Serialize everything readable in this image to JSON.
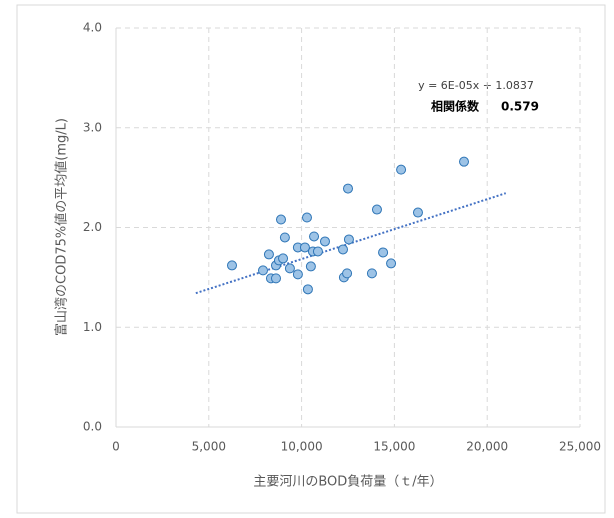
{
  "chart_data": {
    "type": "scatter",
    "x_label": "主要河川のBOD負荷量（ｔ/年）",
    "y_label": "富山湾のCOD75%値の平均値(mg/L)",
    "x": [
      6250,
      7920,
      8240,
      8350,
      8620,
      8620,
      8780,
      8890,
      9000,
      9100,
      9370,
      9800,
      9800,
      10180,
      10290,
      10340,
      10500,
      10670,
      10610,
      10880,
      11260,
      12230,
      12280,
      12450,
      12500,
      12550,
      13790,
      14060,
      14390,
      14820,
      15360,
      16270,
      18750
    ],
    "values": [
      1.62,
      1.57,
      1.73,
      1.49,
      1.49,
      1.62,
      1.67,
      2.08,
      1.69,
      1.9,
      1.59,
      1.8,
      1.53,
      1.8,
      2.1,
      1.38,
      1.61,
      1.91,
      1.76,
      1.76,
      1.86,
      1.78,
      1.5,
      1.54,
      2.39,
      1.88,
      1.54,
      2.18,
      1.75,
      1.64,
      2.58,
      2.15,
      2.66
    ],
    "color": "#9dc3e6",
    "xlim": [
      0,
      25000
    ],
    "xticks": [
      0,
      {
        "value": 5000,
        "label": "5,000"
      },
      {
        "value": 10000,
        "label": "10,000"
      },
      {
        "value": 15000,
        "label": "15,000"
      },
      {
        "value": 20000,
        "label": "20,000"
      },
      {
        "value": 25000,
        "label": "25,000"
      }
    ],
    "ylim": [
      0,
      4
    ],
    "yticks": [
      {
        "value": 0,
        "label": "0.0"
      },
      {
        "value": 1,
        "label": "1.0"
      },
      {
        "value": 2,
        "label": "2.0"
      },
      {
        "value": 3,
        "label": "3.0"
      },
      {
        "value": 4,
        "label": "4.0"
      }
    ],
    "grid": true,
    "trendline": {
      "equation": "y = 6E-05x + 1.0837",
      "slope": 6e-05,
      "intercept": 1.0837,
      "x_range": [
        4300,
        21000
      ],
      "color": "#4472c4"
    },
    "correlation_label": "相関係数",
    "correlation_value": "0.579"
  }
}
